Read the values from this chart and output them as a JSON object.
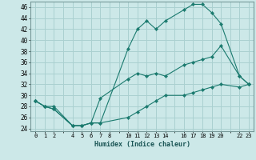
{
  "xlabel": "Humidex (Indice chaleur)",
  "bg_color": "#cce8e8",
  "grid_color": "#aad0d0",
  "line_color": "#1a7a6e",
  "xlim": [
    -0.5,
    23.5
  ],
  "ylim": [
    23.5,
    47
  ],
  "yticks": [
    24,
    26,
    28,
    30,
    32,
    34,
    36,
    38,
    40,
    42,
    44,
    46
  ],
  "xtick_positions": [
    0,
    1,
    2,
    4,
    5,
    6,
    7,
    8,
    10,
    11,
    12,
    13,
    14,
    16,
    17,
    18,
    19,
    20,
    22,
    23
  ],
  "xtick_labels": [
    "0",
    "1",
    "2",
    "4",
    "5",
    "6",
    "7",
    "8",
    "10",
    "11",
    "12",
    "13",
    "14",
    "16",
    "17",
    "18",
    "19",
    "20",
    "22",
    "23"
  ],
  "curve1_x": [
    0,
    1,
    2,
    4,
    5,
    6,
    7,
    10,
    11,
    12,
    13,
    14,
    16,
    17,
    18,
    19,
    20,
    22,
    23
  ],
  "curve1_y": [
    29,
    28,
    28,
    24.5,
    24.5,
    25,
    25,
    38.5,
    42,
    43.5,
    42,
    43.5,
    45.5,
    46.5,
    46.5,
    45,
    43,
    33.5,
    32
  ],
  "curve2_x": [
    0,
    1,
    2,
    4,
    5,
    6,
    7,
    10,
    11,
    12,
    13,
    14,
    16,
    17,
    18,
    19,
    20,
    22,
    23
  ],
  "curve2_y": [
    29,
    28,
    27.5,
    24.5,
    24.5,
    25,
    29.5,
    33,
    34,
    33.5,
    34,
    33.5,
    35.5,
    36,
    36.5,
    37,
    39,
    33.5,
    32
  ],
  "curve3_x": [
    0,
    1,
    2,
    4,
    5,
    6,
    7,
    10,
    11,
    12,
    13,
    14,
    16,
    17,
    18,
    19,
    20,
    22,
    23
  ],
  "curve3_y": [
    29,
    28,
    27.5,
    24.5,
    24.5,
    25,
    25,
    26,
    27,
    28,
    29,
    30,
    30,
    30.5,
    31,
    31.5,
    32,
    31.5,
    32
  ]
}
